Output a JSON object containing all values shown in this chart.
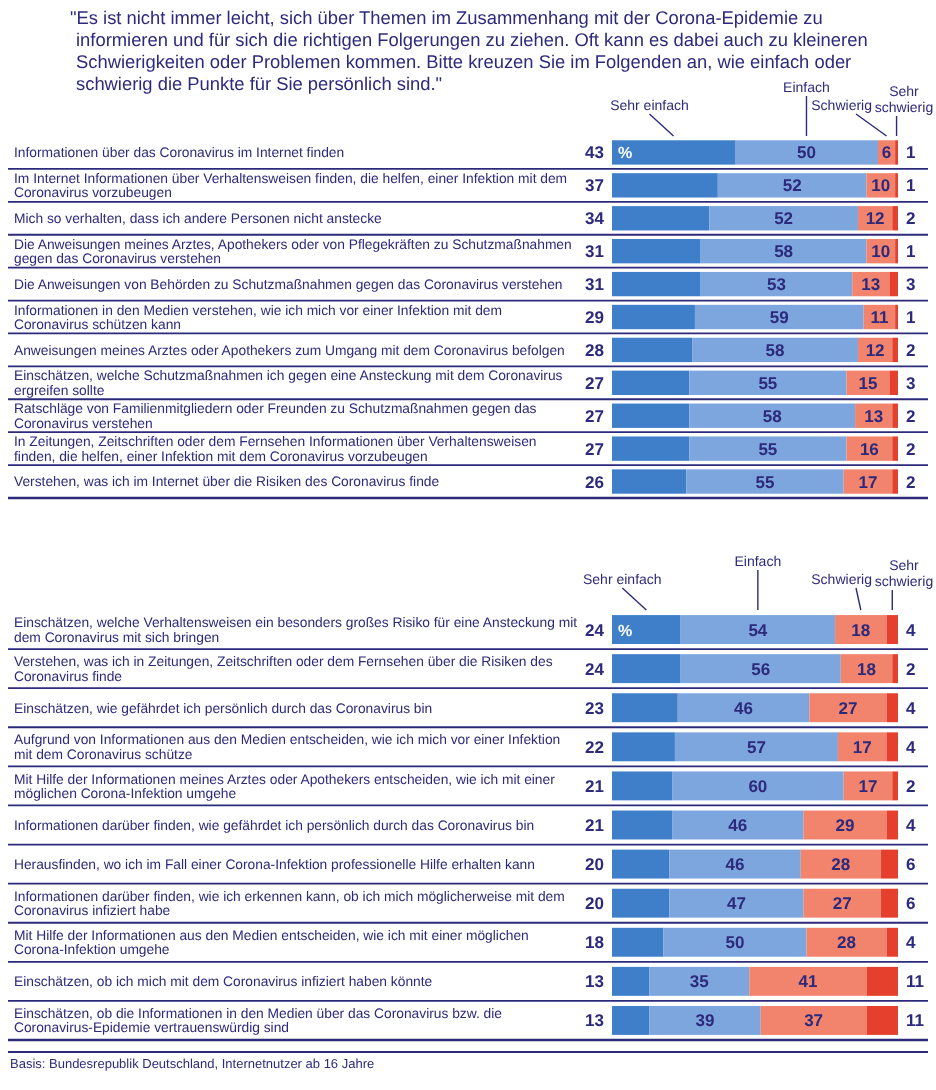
{
  "chart_data": [
    {
      "type": "bar",
      "orientation": "horizontal",
      "stacked": true,
      "data_labels": true,
      "legend": "top",
      "title": "\"Es ist nicht immer leicht, sich über Themen im Zusammenhang mit der Corona-Epidemie zu informieren und für sich die richtigen Folgerungen zu ziehen. Oft kann es dabei auch zu kleineren Schwierigkeiten oder Problemen kommen. Bitte kreuzen Sie im Folgenden an, wie einfach oder schwierig die Punkte für Sie persönlich sind.\"",
      "annotations": [
        "%"
      ],
      "categories": [
        "Informationen über das Coronavirus im Internet finden",
        "Im Internet Informationen über Verhaltensweisen finden, die helfen, einer Infektion mit dem Coronavirus vorzubeugen",
        "Mich so verhalten, dass ich andere Personen nicht anstecke",
        "Die Anweisungen meines Arztes, Apothekers oder von Pflegekräften zu Schutzmaßnahmen gegen das Coronavirus verstehen",
        "Die Anweisungen von Behörden zu Schutzmaßnahmen gegen das Coronavirus verstehen",
        "Informationen in den Medien verstehen, wie ich mich vor einer Infektion mit dem Coronavirus schützen kann",
        "Anweisungen meines Arztes oder Apothekers zum Umgang mit dem Coronavirus befolgen",
        "Einschätzen, welche Schutzmaßnahmen ich gegen eine Ansteckung mit dem Coronavirus ergreifen sollte",
        "Ratschläge von Familienmitgliedern oder Freunden zu Schutzmaßnahmen gegen das Coronavirus verstehen",
        "In Zeitungen, Zeitschriften oder dem Fernsehen Informationen über Verhaltensweisen finden, die helfen, einer Infektion mit dem Coronavirus vorzubeugen",
        "Verstehen, was ich im Internet über die Risiken des Coronavirus finde"
      ],
      "series": [
        {
          "name": "Sehr einfach",
          "color": "#3f7fca",
          "values": [
            43,
            37,
            34,
            31,
            31,
            29,
            28,
            27,
            27,
            27,
            26
          ]
        },
        {
          "name": "Einfach",
          "color": "#7ea6de",
          "values": [
            50,
            52,
            52,
            58,
            53,
            59,
            58,
            55,
            58,
            55,
            55
          ]
        },
        {
          "name": "Schwierig",
          "color": "#f2836c",
          "values": [
            6,
            10,
            12,
            10,
            13,
            11,
            12,
            15,
            13,
            16,
            17
          ]
        },
        {
          "name": "Sehr schwierig",
          "color": "#e5402e",
          "values": [
            1,
            1,
            2,
            1,
            3,
            1,
            2,
            3,
            2,
            2,
            2
          ]
        }
      ]
    },
    {
      "type": "bar",
      "orientation": "horizontal",
      "stacked": true,
      "data_labels": true,
      "legend": "top",
      "annotations": [
        "%",
        "Basis: Bundesrepublik Deutschland, Internetnutzer ab 16 Jahre"
      ],
      "categories": [
        "Einschätzen, welche Verhaltensweisen ein besonders großes Risiko für eine Ansteckung mit dem Coronavirus mit sich bringen",
        "Verstehen, was ich in Zeitungen, Zeitschriften oder dem Fernsehen über die Risiken des Coronavirus finde",
        "Einschätzen, wie gefährdet ich persönlich durch das Coronavirus bin",
        "Aufgrund von Informationen aus den Medien entscheiden, wie ich mich vor einer Infektion mit dem Coronavirus schütze",
        "Mit Hilfe der Informationen meines Arztes oder Apothekers entscheiden, wie ich mit einer möglichen Corona-Infektion umgehe",
        "Informationen darüber finden, wie gefährdet ich persönlich durch das Coronavirus bin",
        "Herausfinden, wo ich im Fall einer Corona-Infektion professionelle Hilfe erhalten kann",
        "Informationen darüber finden, wie ich erkennen kann, ob ich mich möglicherweise mit dem Coronavirus infiziert habe",
        "Mit Hilfe der Informationen aus den Medien entscheiden, wie ich mit einer möglichen Corona-Infektion umgehe",
        "Einschätzen, ob ich mich mit dem Coronavirus infiziert haben könnte",
        "Einschätzen, ob die Informationen in den Medien über das Coronavirus bzw. die Coronavirus-Epidemie vertrauenswürdig sind"
      ],
      "series": [
        {
          "name": "Sehr einfach",
          "color": "#3f7fca",
          "values": [
            24,
            24,
            23,
            22,
            21,
            21,
            20,
            20,
            18,
            13,
            13
          ]
        },
        {
          "name": "Einfach",
          "color": "#7ea6de",
          "values": [
            54,
            56,
            46,
            57,
            60,
            46,
            46,
            47,
            50,
            35,
            39
          ]
        },
        {
          "name": "Schwierig",
          "color": "#f2836c",
          "values": [
            18,
            18,
            27,
            17,
            17,
            29,
            28,
            27,
            28,
            41,
            37
          ]
        },
        {
          "name": "Sehr schwierig",
          "color": "#e5402e",
          "values": [
            4,
            2,
            4,
            4,
            2,
            4,
            6,
            6,
            4,
            11,
            11
          ]
        }
      ]
    }
  ]
}
